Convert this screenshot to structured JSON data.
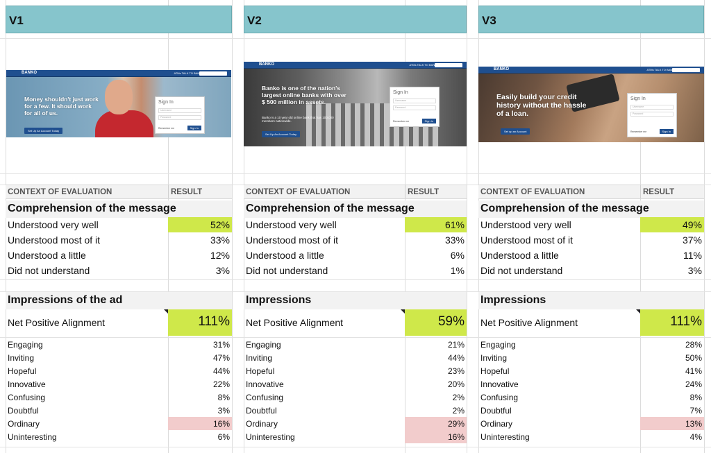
{
  "columns": [
    {
      "header": "V1",
      "ad": {
        "brand": "BANKO",
        "nav_links": "ATMs   TALK TO BANKO",
        "message": "Money shouldn't just work for a few. It should work for all of us.",
        "sub": "",
        "cta": "Set Up An Account Today",
        "signin": "Sign In",
        "user_ph": "Username",
        "pass_ph": "Password",
        "remember": "Remember me",
        "signin_btn": "Sign In"
      },
      "table_header": {
        "context": "CONTEXT OF EVALUATION",
        "result": "RESULT"
      },
      "comprehension": {
        "title": "Comprehension of the message",
        "rows": [
          {
            "label": "Understood very well",
            "value": "52%"
          },
          {
            "label": "Understood most of it",
            "value": "33%"
          },
          {
            "label": "Understood a little",
            "value": "12%"
          },
          {
            "label": "Did not understand",
            "value": "3%"
          }
        ]
      },
      "impressions": {
        "title": "Impressions of the ad",
        "net_label": "Net Positive Alignment",
        "net_value": "111%",
        "rows": [
          {
            "label": "Engaging",
            "value": "31%"
          },
          {
            "label": "Inviting",
            "value": "47%"
          },
          {
            "label": "Hopeful",
            "value": "44%"
          },
          {
            "label": "Innovative",
            "value": "22%"
          },
          {
            "label": "Confusing",
            "value": "8%"
          },
          {
            "label": "Doubtful",
            "value": "3%"
          },
          {
            "label": "Ordinary",
            "value": "16%"
          },
          {
            "label": "Uninteresting",
            "value": "6%"
          }
        ]
      }
    },
    {
      "header": "V2",
      "ad": {
        "brand": "BANKO",
        "nav_links": "ATMs   TALK TO BANKO",
        "message": "Banko is one of the nation's largest online banks with over $ 500 million in assets.",
        "sub": "Banko is a 10 year old online bank that has 100,000 members nationwide.",
        "cta": "Set Up An Account Today",
        "signin": "Sign In",
        "user_ph": "Username",
        "pass_ph": "Password",
        "remember": "Remember me",
        "signin_btn": "Sign In"
      },
      "table_header": {
        "context": "CONTEXT OF EVALUATION",
        "result": "RESULT"
      },
      "comprehension": {
        "title": "Comprehension of the message",
        "rows": [
          {
            "label": "Understood very well",
            "value": "61%"
          },
          {
            "label": "Understood most of it",
            "value": "33%"
          },
          {
            "label": "Understood a little",
            "value": "6%"
          },
          {
            "label": "Did not understand",
            "value": "1%"
          }
        ]
      },
      "impressions": {
        "title": "Impressions",
        "net_label": "Net Positive Alignment",
        "net_value": "59%",
        "rows": [
          {
            "label": "Engaging",
            "value": "21%"
          },
          {
            "label": "Inviting",
            "value": "44%"
          },
          {
            "label": "Hopeful",
            "value": "23%"
          },
          {
            "label": "Innovative",
            "value": "20%"
          },
          {
            "label": "Confusing",
            "value": "2%"
          },
          {
            "label": "Doubtful",
            "value": "2%"
          },
          {
            "label": "Ordinary",
            "value": "29%"
          },
          {
            "label": "Uninteresting",
            "value": "16%"
          }
        ]
      }
    },
    {
      "header": "V3",
      "ad": {
        "brand": "BANKO",
        "nav_links": "ATMs   TALK TO BANKO",
        "message": "Easily build your credit history without the hassle of a loan.",
        "sub": "",
        "cta": "Set up an Account",
        "signin": "Sign In",
        "user_ph": "Username",
        "pass_ph": "Password",
        "remember": "Remember me",
        "signin_btn": "Sign In"
      },
      "table_header": {
        "context": "CONTEXT OF EVALUATION",
        "result": "RESULT"
      },
      "comprehension": {
        "title": "Comprehension of the message",
        "rows": [
          {
            "label": "Understood very well",
            "value": "49%"
          },
          {
            "label": "Understood most of it",
            "value": "37%"
          },
          {
            "label": "Understood a little",
            "value": "11%"
          },
          {
            "label": "Did not understand",
            "value": "3%"
          }
        ]
      },
      "impressions": {
        "title": "Impressions",
        "net_label": "Net Positive Alignment",
        "net_value": "111%",
        "rows": [
          {
            "label": "Engaging",
            "value": "28%"
          },
          {
            "label": "Inviting",
            "value": "50%"
          },
          {
            "label": "Hopeful",
            "value": "41%"
          },
          {
            "label": "Innovative",
            "value": "24%"
          },
          {
            "label": "Confusing",
            "value": "8%"
          },
          {
            "label": "Doubtful",
            "value": "7%"
          },
          {
            "label": "Ordinary",
            "value": "13%"
          },
          {
            "label": "Uninteresting",
            "value": "4%"
          }
        ]
      }
    }
  ],
  "colors": {
    "header_bg": "#86c5cc",
    "highlight_green": "#cfe84a",
    "highlight_pink": "#f2cccc",
    "nav_blue": "#1f4f8f"
  }
}
